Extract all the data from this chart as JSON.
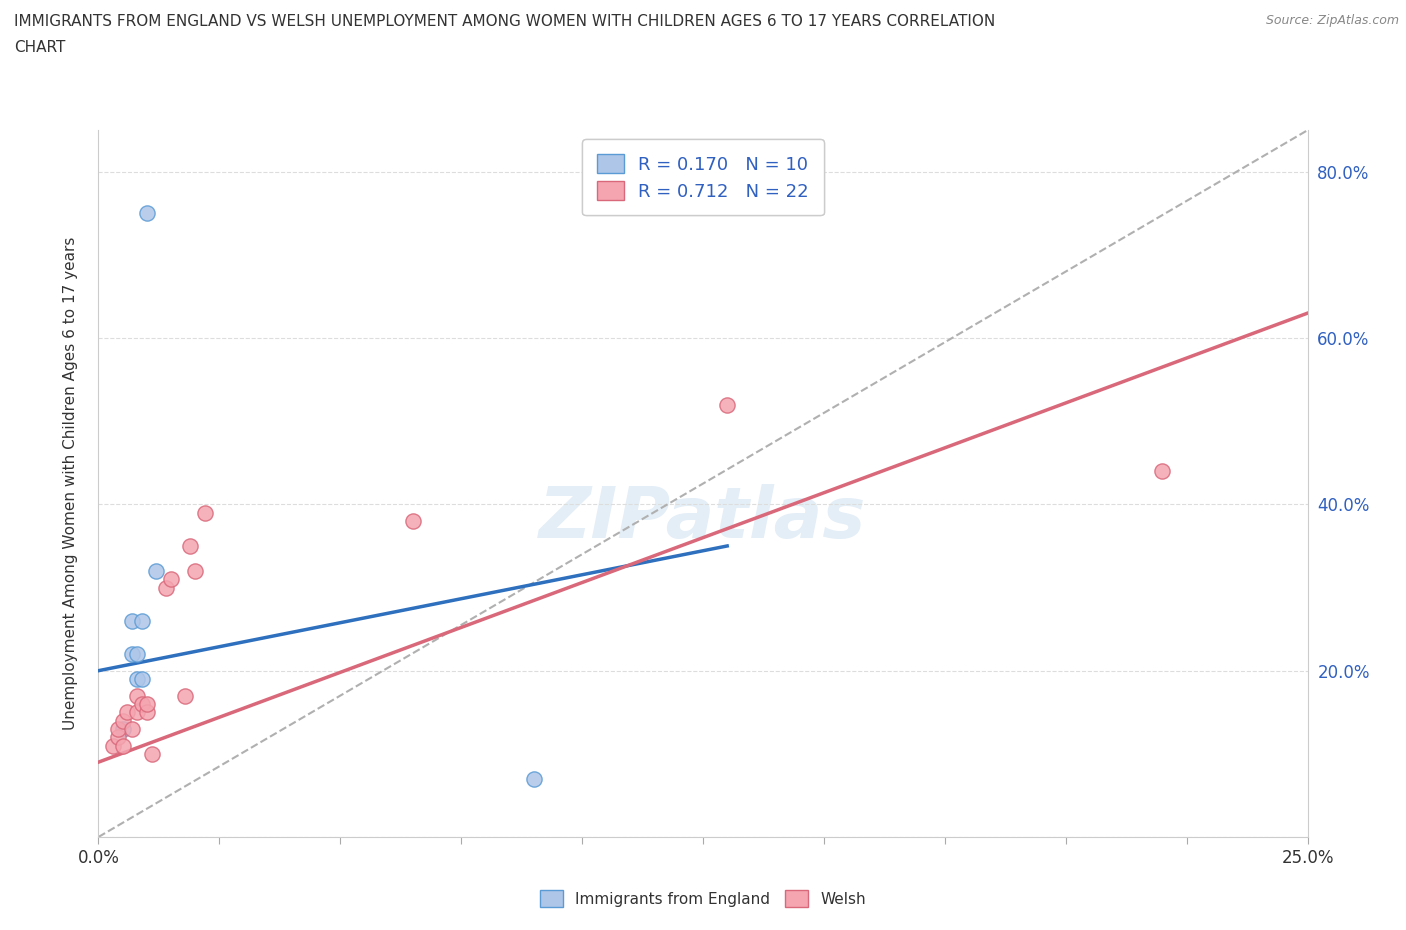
{
  "title_line1": "IMMIGRANTS FROM ENGLAND VS WELSH UNEMPLOYMENT AMONG WOMEN WITH CHILDREN AGES 6 TO 17 YEARS CORRELATION",
  "title_line2": "CHART",
  "source": "Source: ZipAtlas.com",
  "ylabel_label": "Unemployment Among Women with Children Ages 6 to 17 years",
  "xlim": [
    0.0,
    0.25
  ],
  "ylim": [
    0.0,
    0.85
  ],
  "ytick_vals": [
    0.0,
    0.2,
    0.4,
    0.6,
    0.8
  ],
  "ytick_labels": [
    "",
    "20.0%",
    "40.0%",
    "60.0%",
    "80.0%"
  ],
  "england_R": 0.17,
  "england_N": 10,
  "welsh_R": 0.712,
  "welsh_N": 22,
  "england_fill_color": "#aec6e8",
  "england_edge_color": "#5b9bd5",
  "welsh_fill_color": "#f4a5b0",
  "welsh_edge_color": "#d9687a",
  "england_line_color": "#2e6fbe",
  "welsh_line_color": "#d9687a",
  "trend_line_color": "#b0b0b0",
  "england_scatter": [
    [
      0.005,
      0.13
    ],
    [
      0.007,
      0.22
    ],
    [
      0.007,
      0.26
    ],
    [
      0.008,
      0.19
    ],
    [
      0.008,
      0.22
    ],
    [
      0.009,
      0.26
    ],
    [
      0.009,
      0.19
    ],
    [
      0.01,
      0.75
    ],
    [
      0.012,
      0.32
    ],
    [
      0.09,
      0.07
    ]
  ],
  "welsh_scatter": [
    [
      0.003,
      0.11
    ],
    [
      0.004,
      0.12
    ],
    [
      0.004,
      0.13
    ],
    [
      0.005,
      0.11
    ],
    [
      0.005,
      0.14
    ],
    [
      0.006,
      0.15
    ],
    [
      0.007,
      0.13
    ],
    [
      0.008,
      0.15
    ],
    [
      0.008,
      0.17
    ],
    [
      0.009,
      0.16
    ],
    [
      0.01,
      0.15
    ],
    [
      0.01,
      0.16
    ],
    [
      0.011,
      0.1
    ],
    [
      0.014,
      0.3
    ],
    [
      0.015,
      0.31
    ],
    [
      0.018,
      0.17
    ],
    [
      0.019,
      0.35
    ],
    [
      0.02,
      0.32
    ],
    [
      0.022,
      0.39
    ],
    [
      0.065,
      0.38
    ],
    [
      0.13,
      0.52
    ],
    [
      0.22,
      0.44
    ]
  ],
  "england_line_x": [
    0.0,
    0.13
  ],
  "england_line_y": [
    0.2,
    0.35
  ],
  "welsh_line_x": [
    0.0,
    0.25
  ],
  "welsh_line_y": [
    0.09,
    0.63
  ],
  "diagonal_line_x": [
    0.0,
    0.25
  ],
  "diagonal_line_y": [
    0.0,
    0.85
  ],
  "watermark": "ZIPatlas",
  "background_color": "#ffffff",
  "tick_color": "#3060c0",
  "label_color": "#333333",
  "grid_color": "#dddddd",
  "source_color": "#888888"
}
